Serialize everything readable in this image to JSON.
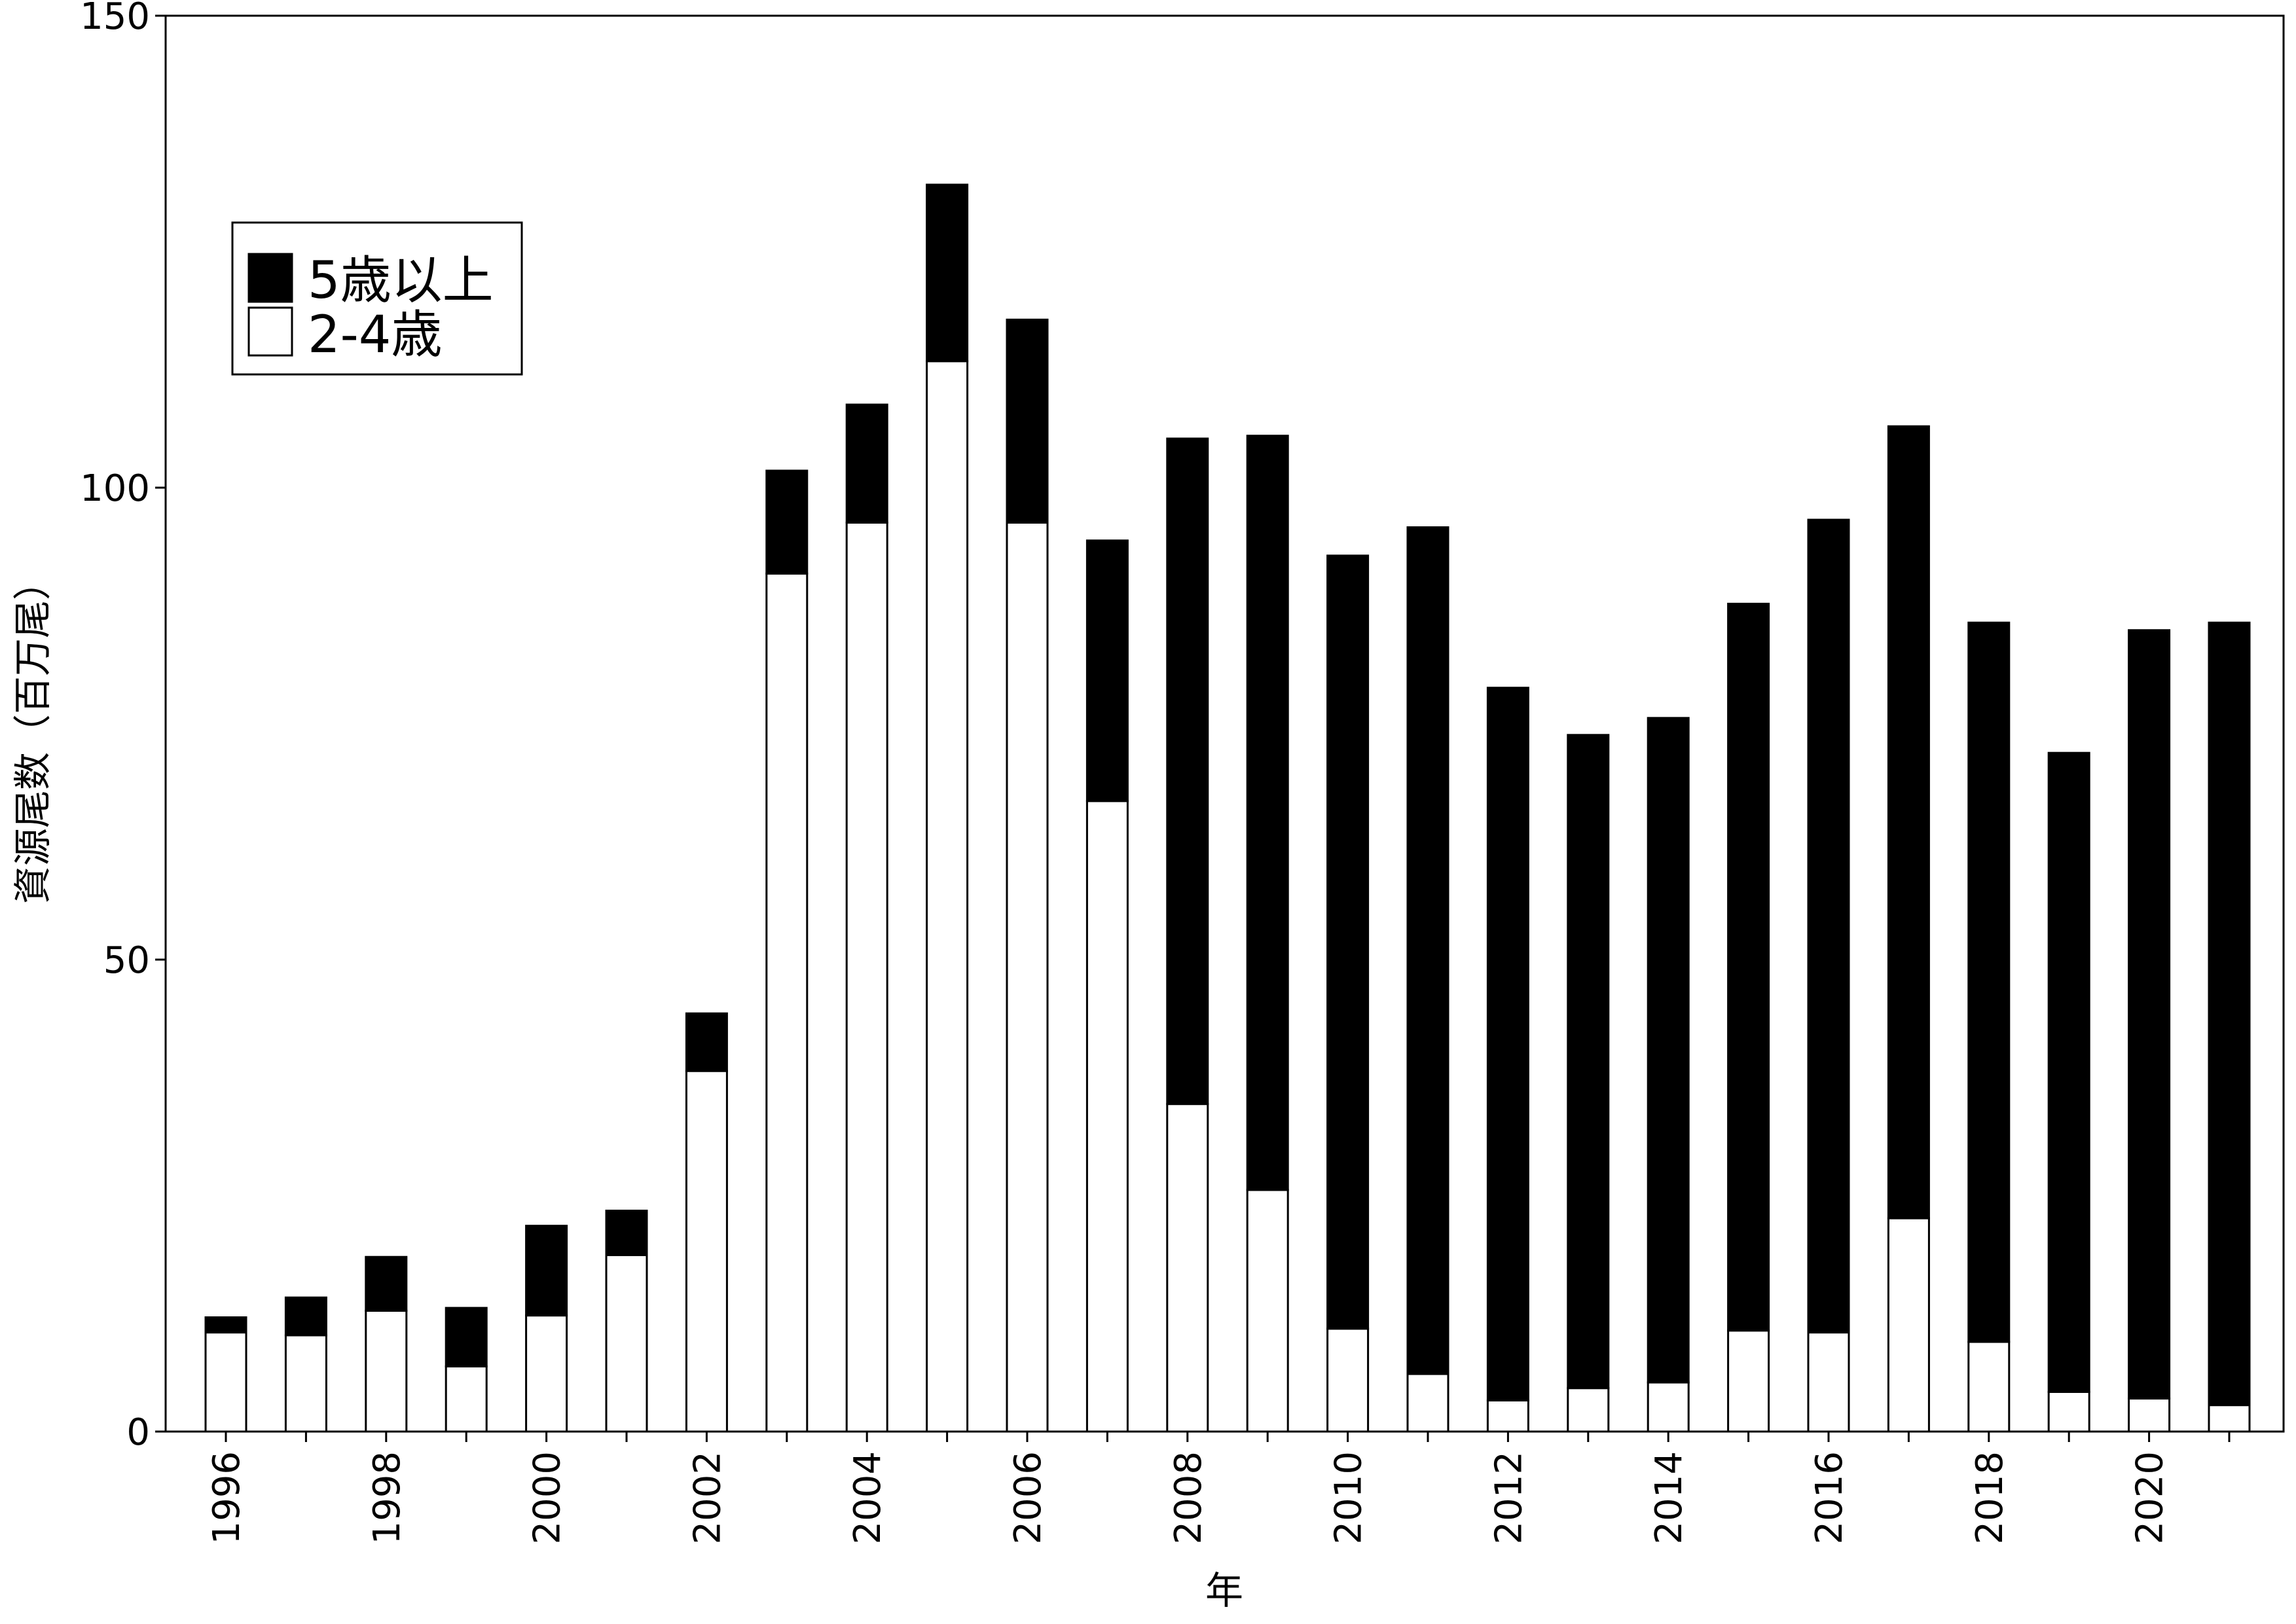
{
  "chart_data": {
    "type": "bar",
    "stacked": true,
    "title": "",
    "xlabel": "年",
    "ylabel": "資源尾数（百万尾）",
    "ylim": [
      0,
      150
    ],
    "yticks": [
      0,
      50,
      100,
      150
    ],
    "categories": [
      "1996",
      "1997",
      "1998",
      "1999",
      "2000",
      "2001",
      "2002",
      "2003",
      "2004",
      "2005",
      "2006",
      "2007",
      "2008",
      "2009",
      "2010",
      "2011",
      "2012",
      "2013",
      "2014",
      "2015",
      "2016",
      "2017",
      "2018",
      "2019",
      "2020",
      "2021"
    ],
    "xtick_labels": [
      "1996",
      "",
      "1998",
      "",
      "2000",
      "",
      "2002",
      "",
      "2004",
      "",
      "2006",
      "",
      "2008",
      "",
      "2010",
      "",
      "2012",
      "",
      "2014",
      "",
      "2016",
      "",
      "2018",
      "",
      "2020",
      ""
    ],
    "series": [
      {
        "name": "2-4歳",
        "color": "#ffffff",
        "values": [
          10.5,
          10.2,
          12.8,
          6.9,
          12.3,
          18.7,
          38.2,
          90.9,
          96.3,
          113.4,
          96.3,
          66.8,
          34.7,
          25.6,
          10.9,
          6.1,
          3.3,
          4.6,
          5.2,
          10.7,
          10.5,
          22.6,
          9.5,
          4.2,
          3.5,
          2.8
        ]
      },
      {
        "name": "5歳以上",
        "color": "#000000",
        "values": [
          1.6,
          4.0,
          5.7,
          6.2,
          9.5,
          4.7,
          6.1,
          10.9,
          12.5,
          18.7,
          21.5,
          27.6,
          70.5,
          79.9,
          81.9,
          89.7,
          75.5,
          69.2,
          70.4,
          77.0,
          86.1,
          83.9,
          76.2,
          67.7,
          81.4,
          82.9
        ]
      }
    ],
    "legend": {
      "position": "top-left",
      "entries": [
        {
          "label": "5歳以上",
          "color": "#000000"
        },
        {
          "label": "2-4歳",
          "color": "#ffffff"
        }
      ]
    },
    "grid": false
  }
}
